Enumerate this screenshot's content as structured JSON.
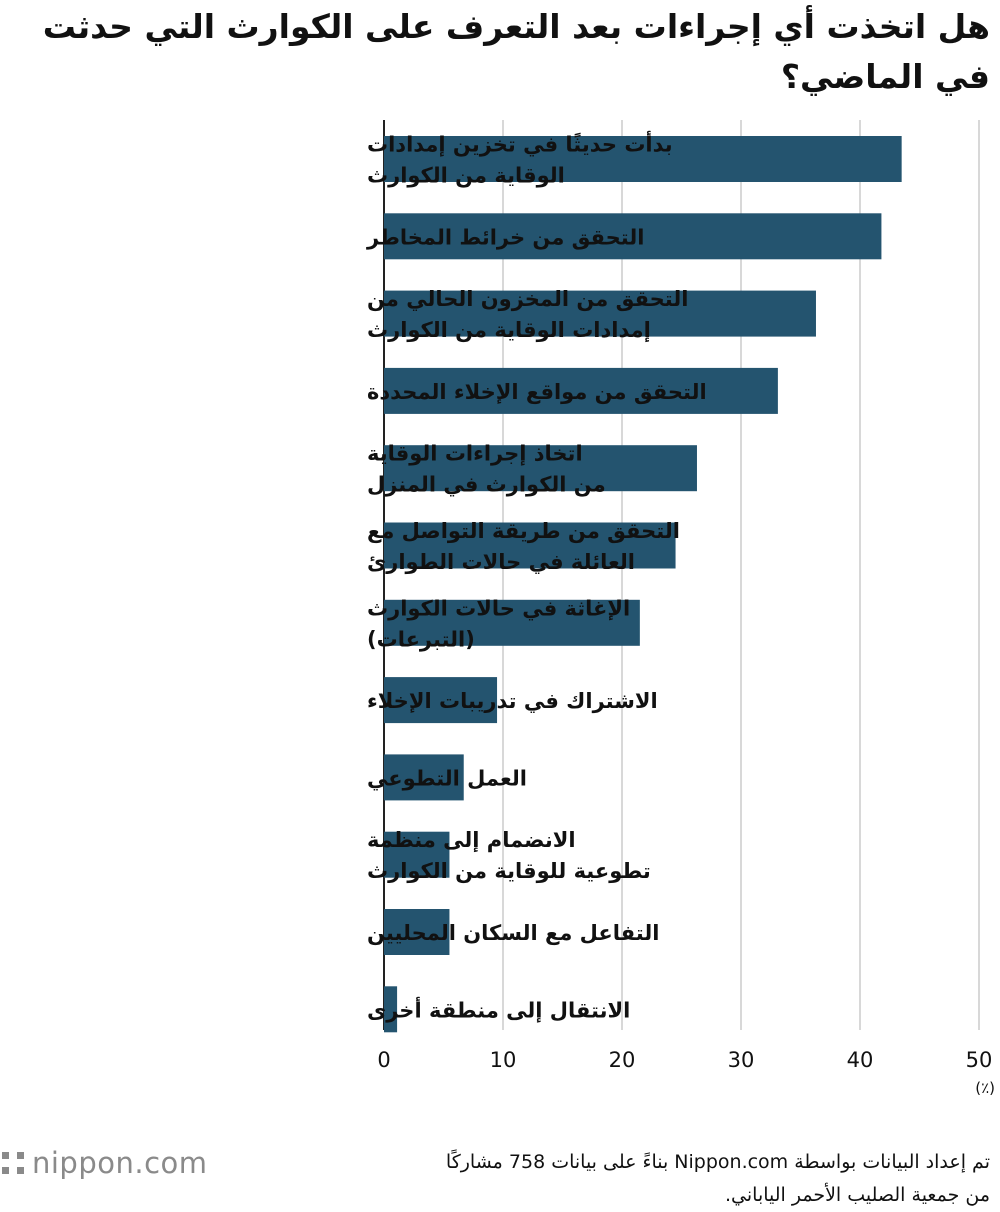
{
  "chart_data": {
    "type": "bar",
    "orientation": "horizontal",
    "title": "هل اتخذت أي إجراءات بعد التعرف على الكوارث التي حدثت في الماضي؟",
    "categories": [
      [
        "بدأت حديثًا في تخزين إمدادات",
        "الوقاية من الكوارث"
      ],
      [
        "التحقق من خرائط المخاطر"
      ],
      [
        "التحقق من المخزون الحالي من",
        "إمدادات الوقاية من الكوارث"
      ],
      [
        "التحقق من مواقع الإخلاء المحددة"
      ],
      [
        "اتخاذ إجراءات الوقاية",
        "من الكوارث في المنزل"
      ],
      [
        "التحقق من طريقة التواصل مع",
        "العائلة في حالات الطوارئ"
      ],
      [
        "الإغاثة في حالات الكوارث",
        "(التبرعات)"
      ],
      [
        "الاشتراك في تدريبات الإخلاء"
      ],
      [
        "العمل التطوعي"
      ],
      [
        "الانضمام إلى منظمة",
        "تطوعية للوقاية من الكوارث"
      ],
      [
        "التفاعل مع السكان المحليين"
      ],
      [
        "الانتقال إلى منطقة أخرى"
      ]
    ],
    "values": [
      43.5,
      41.8,
      36.3,
      33.1,
      26.3,
      24.5,
      21.5,
      9.5,
      6.7,
      5.5,
      5.5,
      1.1
    ],
    "x_ticks": [
      "0",
      "10",
      "20",
      "30",
      "40",
      "50"
    ],
    "xlim": [
      0,
      50
    ],
    "unit": "(٪)",
    "grid": true,
    "bar_color": "#24546f"
  },
  "source_lines": [
    "تم إعداد البيانات بواسطة Nippon.com بناءً على بيانات 758 مشاركًا",
    "من جمعية الصليب الأحمر الياباني."
  ],
  "logo_text": "nippon.com"
}
